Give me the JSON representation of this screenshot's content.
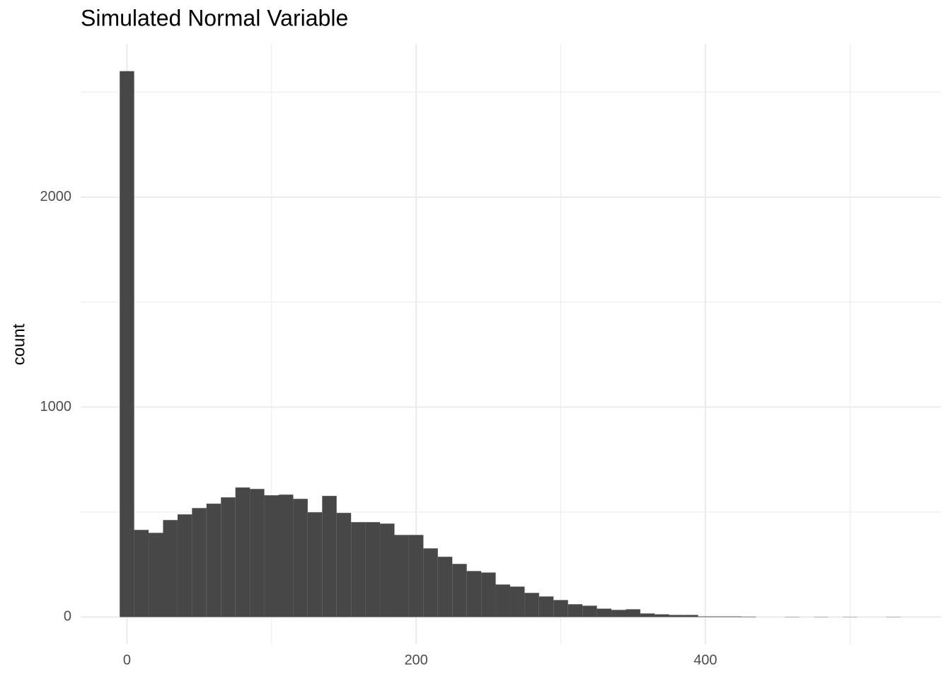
{
  "chart_data": {
    "type": "histogram",
    "title": "Simulated Normal Variable",
    "y_label": "count",
    "bins": [
      -5,
      5,
      15,
      25,
      35,
      45,
      55,
      65,
      75,
      85,
      95,
      105,
      115,
      125,
      135,
      145,
      155,
      165,
      175,
      185,
      195,
      205,
      215,
      225,
      235,
      245,
      255,
      265,
      275,
      285,
      295,
      305,
      315,
      325,
      335,
      345,
      355,
      365,
      375,
      385,
      395,
      405,
      415,
      425,
      435,
      445,
      455,
      465,
      475,
      485,
      495,
      505,
      515,
      525,
      535
    ],
    "values": [
      2600,
      415,
      401,
      462,
      489,
      519,
      540,
      570,
      617,
      610,
      580,
      583,
      563,
      499,
      577,
      496,
      452,
      452,
      445,
      391,
      391,
      327,
      287,
      253,
      219,
      212,
      155,
      145,
      115,
      98,
      81,
      61,
      54,
      40,
      34,
      37,
      17,
      13,
      10,
      10,
      3,
      3,
      3,
      2,
      0,
      0,
      1,
      0,
      1,
      0,
      1,
      0,
      0,
      1
    ],
    "color": "#474747",
    "xlim": [
      -32,
      563
    ],
    "xticks": [
      0,
      200,
      400
    ],
    "x_minor_ticks": [
      100,
      300,
      500
    ],
    "ylim": [
      -130,
      2730
    ],
    "yticks": [
      0,
      1000,
      2000
    ],
    "y_minor_ticks": [
      500,
      1500,
      2500
    ],
    "grid": true
  }
}
